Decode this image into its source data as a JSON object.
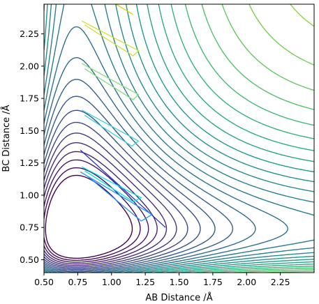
{
  "chart_data": {
    "type": "contour",
    "title": "",
    "xlabel": "AB Distance /Å",
    "ylabel": "BC Distance /Å",
    "xlim": [
      0.5,
      2.5
    ],
    "ylim": [
      0.4,
      2.48
    ],
    "xticks": [
      "0.50",
      "0.75",
      "1.00",
      "1.25",
      "1.50",
      "1.75",
      "2.00",
      "2.25"
    ],
    "yticks": [
      "0.50",
      "0.75",
      "1.00",
      "1.25",
      "1.50",
      "1.75",
      "2.00",
      "2.25"
    ],
    "xtick_values": [
      0.5,
      0.75,
      1.0,
      1.25,
      1.5,
      1.75,
      2.0,
      2.25
    ],
    "ytick_values": [
      0.5,
      0.75,
      1.0,
      1.25,
      1.5,
      1.75,
      2.0,
      2.25
    ],
    "colormap": "viridis",
    "grid": false,
    "legend": "none",
    "surface": {
      "De": 1.0,
      "beta": 1.9,
      "r0": 0.74,
      "coupling": 0.35,
      "levels_min": -0.95,
      "levels_max": 1.2,
      "levels_count": 30
    },
    "trajectory_segments": [
      {
        "color": "#1f2fd6",
        "points": [
          [
            0.77,
            1.35
          ],
          [
            1.4,
            0.75
          ]
        ]
      },
      {
        "color": "#1e90ff",
        "points": [
          [
            0.77,
            1.18
          ],
          [
            1.3,
            0.85
          ],
          [
            1.22,
            0.8
          ],
          [
            0.82,
            1.15
          ]
        ]
      },
      {
        "color": "#3ad0e0",
        "points": [
          [
            0.78,
            1.66
          ],
          [
            1.2,
            1.42
          ],
          [
            1.15,
            1.38
          ],
          [
            0.8,
            1.62
          ]
        ]
      },
      {
        "color": "#00e5e5",
        "points": [
          [
            0.78,
            1.22
          ],
          [
            1.22,
            0.98
          ],
          [
            1.16,
            0.95
          ],
          [
            0.8,
            1.19
          ]
        ]
      },
      {
        "color": "#7fe07f",
        "points": [
          [
            0.78,
            2.02
          ],
          [
            1.2,
            1.78
          ],
          [
            1.16,
            1.74
          ],
          [
            0.8,
            1.98
          ]
        ]
      },
      {
        "color": "#d0e030",
        "points": [
          [
            0.78,
            2.35
          ],
          [
            1.2,
            2.12
          ],
          [
            1.16,
            2.08
          ],
          [
            0.8,
            2.32
          ]
        ]
      },
      {
        "color": "#e0d000",
        "points": [
          [
            1.0,
            2.5
          ],
          [
            1.16,
            2.4
          ]
        ]
      }
    ]
  }
}
